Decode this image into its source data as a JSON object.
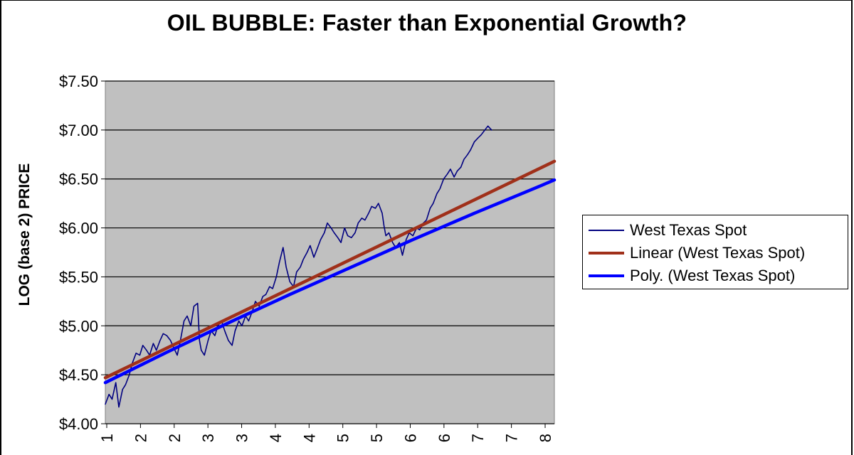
{
  "chart_data": {
    "type": "line",
    "title": "OIL BUBBLE: Faster than Exponential Growth?",
    "xlabel": "",
    "ylabel": "LOG (base 2) PRICE",
    "ylim": [
      4.0,
      7.5
    ],
    "ytick_labels": [
      "$4.00",
      "$4.50",
      "$5.00",
      "$5.50",
      "$6.00",
      "$6.50",
      "$7.00",
      "$7.50"
    ],
    "yticks": [
      4.0,
      4.5,
      5.0,
      5.5,
      6.0,
      6.5,
      7.0,
      7.5
    ],
    "xlim": [
      1,
      8.3
    ],
    "xtick_labels": [
      "1",
      "2",
      "2",
      "3",
      "3",
      "4",
      "4",
      "5",
      "5",
      "6",
      "6",
      "7",
      "7",
      "8"
    ],
    "grid": true,
    "legend_position": "right",
    "series": [
      {
        "name": "West Texas Spot",
        "color": "#000080",
        "points": [
          [
            1.0,
            4.2
          ],
          [
            1.06,
            4.3
          ],
          [
            1.11,
            4.25
          ],
          [
            1.17,
            4.42
          ],
          [
            1.22,
            4.17
          ],
          [
            1.28,
            4.35
          ],
          [
            1.33,
            4.4
          ],
          [
            1.39,
            4.5
          ],
          [
            1.44,
            4.62
          ],
          [
            1.5,
            4.72
          ],
          [
            1.56,
            4.7
          ],
          [
            1.61,
            4.8
          ],
          [
            1.67,
            4.75
          ],
          [
            1.72,
            4.7
          ],
          [
            1.78,
            4.82
          ],
          [
            1.83,
            4.75
          ],
          [
            1.89,
            4.85
          ],
          [
            1.94,
            4.92
          ],
          [
            2.0,
            4.9
          ],
          [
            2.06,
            4.85
          ],
          [
            2.11,
            4.78
          ],
          [
            2.17,
            4.7
          ],
          [
            2.22,
            4.85
          ],
          [
            2.28,
            5.05
          ],
          [
            2.33,
            5.1
          ],
          [
            2.39,
            5.0
          ],
          [
            2.44,
            5.2
          ],
          [
            2.5,
            5.23
          ],
          [
            2.53,
            4.85
          ],
          [
            2.56,
            4.75
          ],
          [
            2.61,
            4.7
          ],
          [
            2.67,
            4.85
          ],
          [
            2.72,
            4.95
          ],
          [
            2.78,
            4.9
          ],
          [
            2.83,
            5.0
          ],
          [
            2.89,
            5.05
          ],
          [
            2.94,
            4.95
          ],
          [
            3.0,
            4.85
          ],
          [
            3.06,
            4.8
          ],
          [
            3.11,
            4.95
          ],
          [
            3.17,
            5.05
          ],
          [
            3.22,
            5.0
          ],
          [
            3.28,
            5.1
          ],
          [
            3.33,
            5.05
          ],
          [
            3.39,
            5.15
          ],
          [
            3.44,
            5.25
          ],
          [
            3.5,
            5.2
          ],
          [
            3.56,
            5.3
          ],
          [
            3.61,
            5.32
          ],
          [
            3.67,
            5.4
          ],
          [
            3.72,
            5.38
          ],
          [
            3.78,
            5.5
          ],
          [
            3.83,
            5.65
          ],
          [
            3.89,
            5.8
          ],
          [
            3.94,
            5.6
          ],
          [
            4.0,
            5.45
          ],
          [
            4.06,
            5.4
          ],
          [
            4.11,
            5.55
          ],
          [
            4.17,
            5.6
          ],
          [
            4.22,
            5.68
          ],
          [
            4.28,
            5.75
          ],
          [
            4.33,
            5.82
          ],
          [
            4.39,
            5.7
          ],
          [
            4.44,
            5.78
          ],
          [
            4.5,
            5.88
          ],
          [
            4.56,
            5.95
          ],
          [
            4.61,
            6.05
          ],
          [
            4.67,
            6.0
          ],
          [
            4.72,
            5.95
          ],
          [
            4.78,
            5.9
          ],
          [
            4.83,
            5.85
          ],
          [
            4.89,
            6.0
          ],
          [
            4.94,
            5.92
          ],
          [
            5.0,
            5.9
          ],
          [
            5.06,
            5.95
          ],
          [
            5.11,
            6.05
          ],
          [
            5.17,
            6.1
          ],
          [
            5.22,
            6.08
          ],
          [
            5.28,
            6.15
          ],
          [
            5.33,
            6.22
          ],
          [
            5.39,
            6.2
          ],
          [
            5.44,
            6.25
          ],
          [
            5.5,
            6.15
          ],
          [
            5.53,
            6.02
          ],
          [
            5.56,
            5.92
          ],
          [
            5.61,
            5.95
          ],
          [
            5.67,
            5.85
          ],
          [
            5.72,
            5.8
          ],
          [
            5.78,
            5.85
          ],
          [
            5.83,
            5.72
          ],
          [
            5.89,
            5.88
          ],
          [
            5.94,
            5.95
          ],
          [
            6.0,
            5.92
          ],
          [
            6.06,
            6.0
          ],
          [
            6.11,
            5.98
          ],
          [
            6.17,
            6.05
          ],
          [
            6.22,
            6.08
          ],
          [
            6.28,
            6.2
          ],
          [
            6.33,
            6.25
          ],
          [
            6.39,
            6.35
          ],
          [
            6.44,
            6.4
          ],
          [
            6.5,
            6.5
          ],
          [
            6.56,
            6.55
          ],
          [
            6.61,
            6.6
          ],
          [
            6.67,
            6.52
          ],
          [
            6.72,
            6.58
          ],
          [
            6.78,
            6.62
          ],
          [
            6.83,
            6.7
          ],
          [
            6.89,
            6.75
          ],
          [
            6.94,
            6.8
          ],
          [
            7.0,
            6.88
          ],
          [
            7.06,
            6.92
          ],
          [
            7.11,
            6.95
          ],
          [
            7.17,
            7.0
          ],
          [
            7.22,
            7.04
          ],
          [
            7.28,
            7.0
          ]
        ]
      },
      {
        "name": "Linear (West Texas Spot)",
        "color": "#A0301A",
        "points": [
          [
            1.0,
            4.47
          ],
          [
            8.3,
            6.68
          ]
        ]
      },
      {
        "name": "Poly. (West Texas Spot)",
        "color": "#0000FF",
        "points": [
          [
            1.0,
            4.42
          ],
          [
            2.0,
            4.73
          ],
          [
            3.0,
            5.03
          ],
          [
            4.0,
            5.32
          ],
          [
            5.0,
            5.6
          ],
          [
            6.0,
            5.88
          ],
          [
            7.0,
            6.15
          ],
          [
            8.0,
            6.41
          ],
          [
            8.3,
            6.49
          ]
        ]
      }
    ]
  }
}
